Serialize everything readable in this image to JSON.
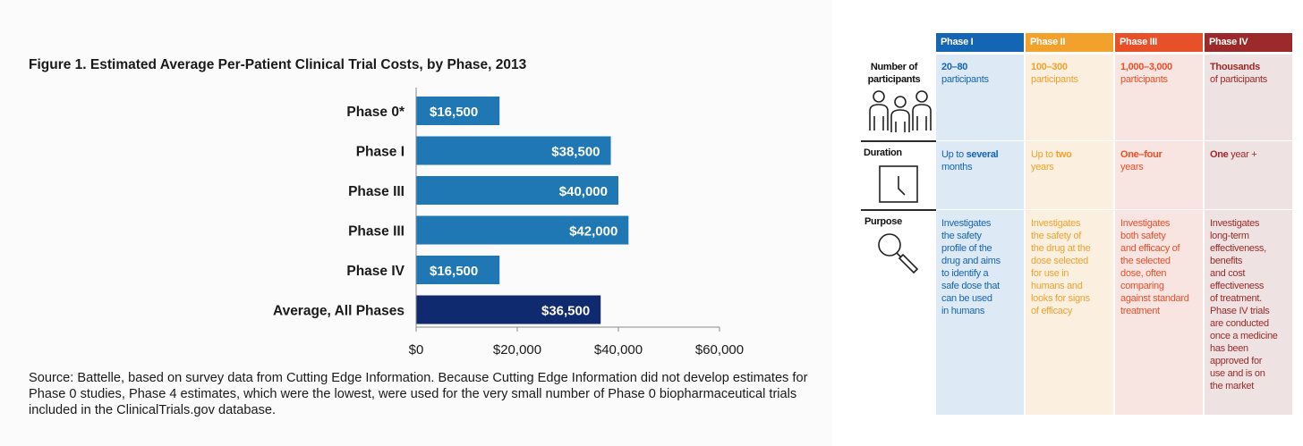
{
  "figure": {
    "title": "Figure 1. Estimated Average Per-Patient Clinical Trial Costs, by Phase, 2013",
    "source": "Source:  Battelle, based on survey data from Cutting Edge Information. Because Cutting Edge Information did not develop estimates for Phase 0 studies, Phase 4 estimates, which were the lowest, were used for the very small number of Phase 0 biopharmaceutical trials included in the ClinicalTrials.gov database."
  },
  "chart_data": {
    "type": "bar",
    "orientation": "horizontal",
    "categories": [
      "Phase 0*",
      "Phase I",
      "Phase III",
      "Phase III",
      "Phase IV",
      "Average, All Phases"
    ],
    "values": [
      16500,
      38500,
      40000,
      42000,
      16500,
      36500
    ],
    "data_labels": [
      "$16,500",
      "$38,500",
      "$40,000",
      "$42,000",
      "$16,500",
      "$36,500"
    ],
    "bar_colors": [
      "#1f78b4",
      "#1f78b4",
      "#1f78b4",
      "#1f78b4",
      "#1f78b4",
      "#0f2a6e"
    ],
    "xlim": [
      0,
      60000
    ],
    "xticks": [
      0,
      20000,
      40000,
      60000
    ],
    "xtick_labels": [
      "$0",
      "$20,000",
      "$40,000",
      "$60,000"
    ],
    "grid": false,
    "legend": "none",
    "title": "Figure 1. Estimated Average Per-Patient Clinical Trial Costs, by Phase, 2013",
    "xlabel": "",
    "ylabel": ""
  },
  "table": {
    "phases": [
      {
        "name": "Phase I",
        "color": "#1565b5",
        "bg": "#dde9f4",
        "participants_bold": "20–80",
        "participants_rest": "participants",
        "duration_pre": "Up to ",
        "duration_bold": "several",
        "duration_post": "months",
        "purpose": [
          "Investigates",
          "the safety",
          "profile of the",
          "drug and aims",
          "to identify a",
          "safe dose that",
          "can be used",
          "in humans"
        ]
      },
      {
        "name": "Phase II",
        "color": "#f2a12c",
        "bg": "#fbf0e0",
        "participants_bold": "100–300",
        "participants_rest": "participants",
        "duration_pre": "Up to ",
        "duration_bold": "two",
        "duration_post": "years",
        "purpose": [
          "Investigates",
          "the safety of",
          "the drug at the",
          "dose selected",
          "for use in",
          "humans and",
          "looks for signs",
          "of efficacy"
        ]
      },
      {
        "name": "Phase III",
        "color": "#e8502a",
        "bg": "#f8e4e0",
        "participants_bold": "1,000–3,000",
        "participants_rest": "participants",
        "duration_pre": "",
        "duration_bold": "One–four",
        "duration_post": "years",
        "purpose": [
          "Investigates",
          "both safety",
          "and efficacy of",
          "the selected",
          "dose, often",
          "comparing",
          "against standard",
          "treatment"
        ]
      },
      {
        "name": "Phase IV",
        "color": "#9c2a2a",
        "bg": "#efe2e2",
        "participants_bold": "Thousands",
        "participants_rest": "of participants",
        "duration_pre": "",
        "duration_bold": "One",
        "duration_post": " year +",
        "purpose": [
          "Investigates",
          "long-term",
          "effectiveness,",
          "benefits",
          "and cost",
          "effectiveness",
          "of treatment.",
          "Phase IV trials",
          "are conducted",
          "once a medicine",
          "has been",
          "approved for",
          "use and is on",
          "the market"
        ]
      }
    ],
    "row_labels": {
      "participants": [
        "Number of",
        "participants"
      ],
      "duration": "Duration",
      "purpose": "Purpose"
    },
    "icons": {
      "participants": "people-icon",
      "duration": "clock-icon",
      "purpose": "magnifier-icon"
    }
  }
}
